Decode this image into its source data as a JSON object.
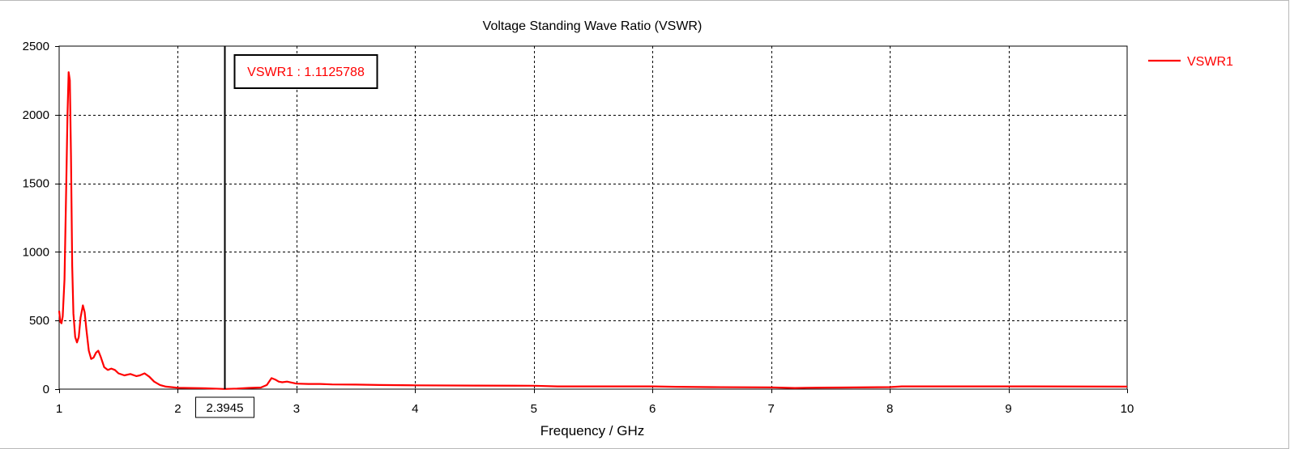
{
  "chart_data": {
    "type": "line",
    "title": "Voltage Standing Wave Ratio (VSWR)",
    "xlabel": "Frequency / GHz",
    "ylabel": "",
    "xlim": [
      1,
      10
    ],
    "ylim": [
      0,
      2500
    ],
    "x_ticks": [
      1,
      2,
      3,
      4,
      5,
      6,
      7,
      8,
      9,
      10
    ],
    "y_ticks": [
      0,
      500,
      1000,
      1500,
      2000,
      2500
    ],
    "grid": true,
    "legend_position": "top-right",
    "marker": {
      "x": 2.3945,
      "x_label": "2.3945",
      "label": "VSWR1 : 1.1125788"
    },
    "series": [
      {
        "name": "VSWR1",
        "color": "#ff0000",
        "points": [
          [
            1.0,
            570
          ],
          [
            1.01,
            490
          ],
          [
            1.02,
            480
          ],
          [
            1.03,
            530
          ],
          [
            1.045,
            800
          ],
          [
            1.06,
            1500
          ],
          [
            1.07,
            2000
          ],
          [
            1.08,
            2310
          ],
          [
            1.09,
            2250
          ],
          [
            1.1,
            1700
          ],
          [
            1.11,
            900
          ],
          [
            1.12,
            550
          ],
          [
            1.135,
            380
          ],
          [
            1.15,
            340
          ],
          [
            1.165,
            380
          ],
          [
            1.18,
            520
          ],
          [
            1.2,
            610
          ],
          [
            1.215,
            560
          ],
          [
            1.23,
            430
          ],
          [
            1.25,
            280
          ],
          [
            1.27,
            220
          ],
          [
            1.29,
            230
          ],
          [
            1.31,
            265
          ],
          [
            1.33,
            280
          ],
          [
            1.35,
            235
          ],
          [
            1.38,
            160
          ],
          [
            1.41,
            140
          ],
          [
            1.44,
            150
          ],
          [
            1.47,
            140
          ],
          [
            1.5,
            115
          ],
          [
            1.55,
            100
          ],
          [
            1.6,
            110
          ],
          [
            1.65,
            95
          ],
          [
            1.68,
            100
          ],
          [
            1.72,
            115
          ],
          [
            1.76,
            90
          ],
          [
            1.8,
            55
          ],
          [
            1.85,
            30
          ],
          [
            1.9,
            18
          ],
          [
            2.0,
            10
          ],
          [
            2.1,
            8
          ],
          [
            2.2,
            7
          ],
          [
            2.3,
            4
          ],
          [
            2.3945,
            1.11
          ],
          [
            2.5,
            4
          ],
          [
            2.6,
            9
          ],
          [
            2.7,
            12
          ],
          [
            2.75,
            30
          ],
          [
            2.79,
            80
          ],
          [
            2.82,
            70
          ],
          [
            2.85,
            55
          ],
          [
            2.88,
            50
          ],
          [
            2.92,
            55
          ],
          [
            2.96,
            48
          ],
          [
            3.0,
            40
          ],
          [
            3.1,
            38
          ],
          [
            3.2,
            38
          ],
          [
            3.3,
            34
          ],
          [
            3.5,
            33
          ],
          [
            3.7,
            30
          ],
          [
            4.0,
            28
          ],
          [
            4.5,
            26
          ],
          [
            5.0,
            25
          ],
          [
            5.2,
            20
          ],
          [
            5.5,
            20
          ],
          [
            6.0,
            20
          ],
          [
            6.2,
            17
          ],
          [
            6.5,
            15
          ],
          [
            7.0,
            13
          ],
          [
            7.2,
            8
          ],
          [
            7.3,
            10
          ],
          [
            7.6,
            12
          ],
          [
            8.0,
            15
          ],
          [
            8.1,
            20
          ],
          [
            9.0,
            20
          ],
          [
            10.0,
            18
          ]
        ]
      }
    ]
  }
}
